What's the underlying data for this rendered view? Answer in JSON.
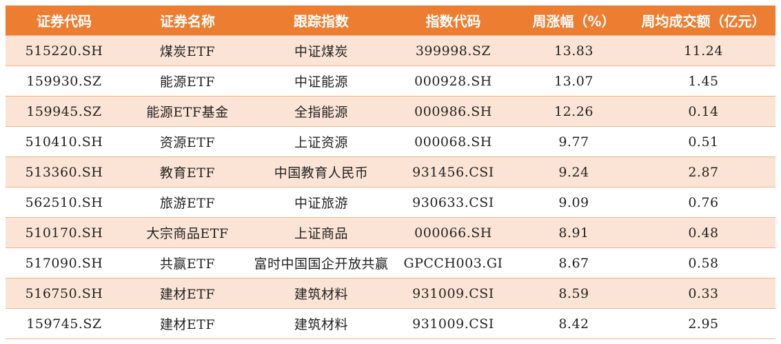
{
  "colors": {
    "header_bg": "#ED7D31",
    "stripe_bg": "#FBE4D5",
    "border": "#F4B183"
  },
  "table": {
    "headers": [
      "证券代码",
      "证券名称",
      "跟踪指数",
      "指数代码",
      "周涨幅（%）",
      "周均成交额（亿元）"
    ],
    "rows": [
      [
        "515220.SH",
        "煤炭ETF",
        "中证煤炭",
        "399998.SZ",
        "13.83",
        "11.24"
      ],
      [
        "159930.SZ",
        "能源ETF",
        "中证能源",
        "000928.SH",
        "13.07",
        "1.45"
      ],
      [
        "159945.SZ",
        "能源ETF基金",
        "全指能源",
        "000986.SH",
        "12.26",
        "0.14"
      ],
      [
        "510410.SH",
        "资源ETF",
        "上证资源",
        "000068.SH",
        "9.77",
        "0.51"
      ],
      [
        "513360.SH",
        "教育ETF",
        "中国教育人民币",
        "931456.CSI",
        "9.24",
        "2.87"
      ],
      [
        "562510.SH",
        "旅游ETF",
        "中证旅游",
        "930633.CSI",
        "9.09",
        "0.76"
      ],
      [
        "510170.SH",
        "大宗商品ETF",
        "上证商品",
        "000066.SH",
        "8.91",
        "0.48"
      ],
      [
        "517090.SH",
        "共赢ETF",
        "富时中国国企开放共赢",
        "GPCCH003.GI",
        "8.67",
        "0.58"
      ],
      [
        "516750.SH",
        "建材ETF",
        "建筑材料",
        "931009.CSI",
        "8.59",
        "0.33"
      ],
      [
        "159745.SZ",
        "建材ETF",
        "建筑材料",
        "931009.CSI",
        "8.42",
        "2.95"
      ]
    ]
  },
  "chart_data": {
    "type": "table",
    "columns": [
      "证券代码",
      "证券名称",
      "跟踪指数",
      "指数代码",
      "周涨幅（%）",
      "周均成交额（亿元）"
    ],
    "rows": [
      [
        "515220.SH",
        "煤炭ETF",
        "中证煤炭",
        "399998.SZ",
        13.83,
        11.24
      ],
      [
        "159930.SZ",
        "能源ETF",
        "中证能源",
        "000928.SH",
        13.07,
        1.45
      ],
      [
        "159945.SZ",
        "能源ETF基金",
        "全指能源",
        "000986.SH",
        12.26,
        0.14
      ],
      [
        "510410.SH",
        "资源ETF",
        "上证资源",
        "000068.SH",
        9.77,
        0.51
      ],
      [
        "513360.SH",
        "教育ETF",
        "中国教育人民币",
        "931456.CSI",
        9.24,
        2.87
      ],
      [
        "562510.SH",
        "旅游ETF",
        "中证旅游",
        "930633.CSI",
        9.09,
        0.76
      ],
      [
        "510170.SH",
        "大宗商品ETF",
        "上证商品",
        "000066.SH",
        8.91,
        0.48
      ],
      [
        "517090.SH",
        "共赢ETF",
        "富时中国国企开放共赢",
        "GPCCH003.GI",
        8.67,
        0.58
      ],
      [
        "516750.SH",
        "建材ETF",
        "建筑材料",
        "931009.CSI",
        8.59,
        0.33
      ],
      [
        "159745.SZ",
        "建材ETF",
        "建筑材料",
        "931009.CSI",
        8.42,
        2.95
      ]
    ]
  }
}
